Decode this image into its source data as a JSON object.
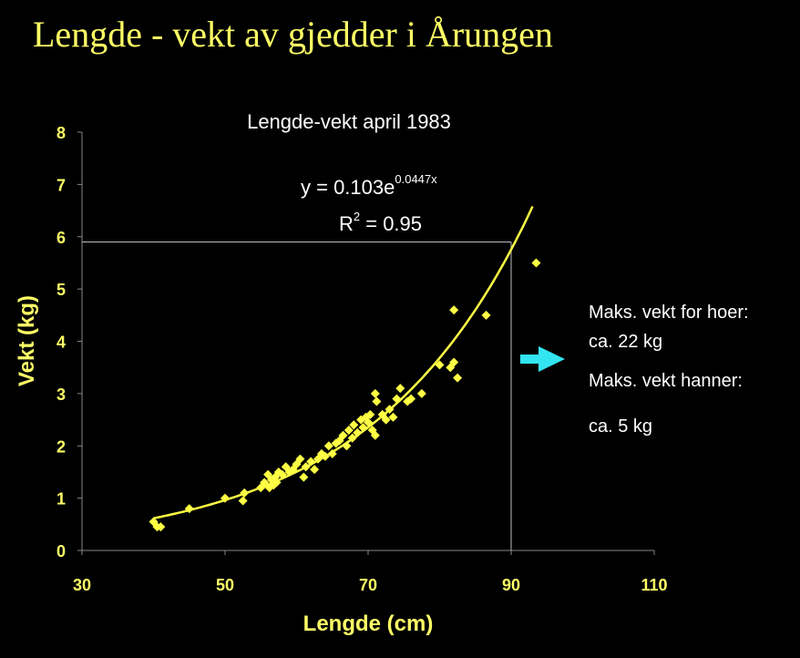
{
  "slide_title": "Lengde - vekt av gjedder i Årungen",
  "notes": {
    "line1": "Maks. vekt for hoer:",
    "line2": "ca. 22 kg",
    "line3": "Maks. vekt hanner:",
    "line4": "ca. 5 kg"
  },
  "colors": {
    "background": "#000000",
    "accent": "#FFFF66",
    "points": "#FFFF44",
    "arrow": "#33E5F0",
    "reference_line": "#BBBBBB",
    "text": "#FFFFFF"
  },
  "chart_data": {
    "type": "scatter",
    "title": "Lengde-vekt april 1983",
    "xlabel": "Lengde (cm)",
    "ylabel": "Vekt (kg)",
    "xlim": [
      30,
      110
    ],
    "ylim": [
      0,
      8
    ],
    "xticks": [
      30,
      50,
      70,
      90,
      110
    ],
    "yticks": [
      0,
      1,
      2,
      3,
      4,
      5,
      6,
      7,
      8
    ],
    "grid": false,
    "trendline": {
      "type": "exponential",
      "a": 0.103,
      "b": 0.0447,
      "x_range": [
        40,
        93
      ],
      "equation_label": "y = 0.103e",
      "equation_exponent": "0.0447x",
      "r2_label": "R",
      "r2_power": "2",
      "r2_value": " = 0.95"
    },
    "reference": {
      "x": 90,
      "y": 5.9
    },
    "points": [
      {
        "x": 40,
        "y": 0.55
      },
      {
        "x": 40.5,
        "y": 0.45
      },
      {
        "x": 41,
        "y": 0.45
      },
      {
        "x": 45,
        "y": 0.8
      },
      {
        "x": 50,
        "y": 1.0
      },
      {
        "x": 52.5,
        "y": 0.95
      },
      {
        "x": 52.7,
        "y": 1.1
      },
      {
        "x": 55,
        "y": 1.2
      },
      {
        "x": 55.5,
        "y": 1.3
      },
      {
        "x": 56,
        "y": 1.45
      },
      {
        "x": 56.2,
        "y": 1.2
      },
      {
        "x": 56.5,
        "y": 1.35
      },
      {
        "x": 56.8,
        "y": 1.25
      },
      {
        "x": 57,
        "y": 1.4
      },
      {
        "x": 57.2,
        "y": 1.3
      },
      {
        "x": 57.5,
        "y": 1.5
      },
      {
        "x": 58,
        "y": 1.45
      },
      {
        "x": 58.5,
        "y": 1.6
      },
      {
        "x": 59,
        "y": 1.5
      },
      {
        "x": 59.5,
        "y": 1.55
      },
      {
        "x": 60,
        "y": 1.65
      },
      {
        "x": 60.5,
        "y": 1.75
      },
      {
        "x": 61,
        "y": 1.4
      },
      {
        "x": 61.3,
        "y": 1.6
      },
      {
        "x": 62,
        "y": 1.7
      },
      {
        "x": 62.5,
        "y": 1.55
      },
      {
        "x": 63,
        "y": 1.75
      },
      {
        "x": 63.5,
        "y": 1.85
      },
      {
        "x": 64,
        "y": 1.8
      },
      {
        "x": 64.5,
        "y": 2.0
      },
      {
        "x": 65,
        "y": 1.85
      },
      {
        "x": 65.5,
        "y": 2.05
      },
      {
        "x": 66,
        "y": 2.1
      },
      {
        "x": 66.5,
        "y": 2.2
      },
      {
        "x": 67,
        "y": 2.0
      },
      {
        "x": 67.3,
        "y": 2.3
      },
      {
        "x": 67.8,
        "y": 2.15
      },
      {
        "x": 68,
        "y": 2.4
      },
      {
        "x": 68.5,
        "y": 2.25
      },
      {
        "x": 69,
        "y": 2.5
      },
      {
        "x": 69.3,
        "y": 2.35
      },
      {
        "x": 69.7,
        "y": 2.55
      },
      {
        "x": 70,
        "y": 2.45
      },
      {
        "x": 70.3,
        "y": 2.6
      },
      {
        "x": 70.6,
        "y": 2.3
      },
      {
        "x": 71,
        "y": 2.2
      },
      {
        "x": 71,
        "y": 3.0
      },
      {
        "x": 71.2,
        "y": 2.85
      },
      {
        "x": 72,
        "y": 2.6
      },
      {
        "x": 72.5,
        "y": 2.5
      },
      {
        "x": 73,
        "y": 2.7
      },
      {
        "x": 73.5,
        "y": 2.55
      },
      {
        "x": 74,
        "y": 2.9
      },
      {
        "x": 74.5,
        "y": 3.1
      },
      {
        "x": 75.5,
        "y": 2.85
      },
      {
        "x": 76,
        "y": 2.9
      },
      {
        "x": 77.5,
        "y": 3.0
      },
      {
        "x": 80,
        "y": 3.55
      },
      {
        "x": 81.5,
        "y": 3.5
      },
      {
        "x": 82,
        "y": 4.6
      },
      {
        "x": 82,
        "y": 3.6
      },
      {
        "x": 82.5,
        "y": 3.3
      },
      {
        "x": 86.5,
        "y": 4.5
      },
      {
        "x": 93.5,
        "y": 5.5
      }
    ]
  }
}
